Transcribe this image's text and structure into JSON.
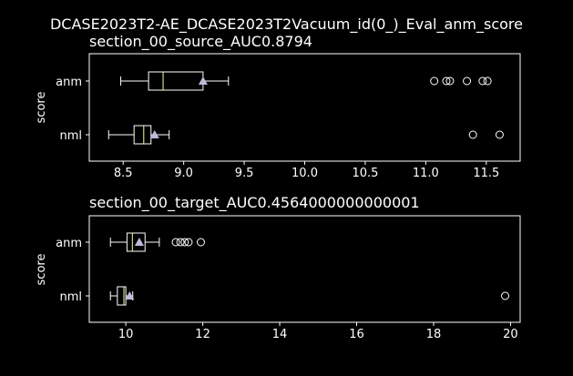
{
  "figure_title": "DCASE2023T2-AE_DCASE2023T2Vacuum_id(0_)_Eval_anm_score",
  "colors": {
    "background": "#000000",
    "axes": "#ffffff",
    "median": "#ffff99",
    "mean_marker": "#bebada"
  },
  "chart_data": [
    {
      "type": "box",
      "title": "section_00_source_AUC0.8794",
      "ylabel": "score",
      "categories": [
        "anm",
        "nml"
      ],
      "xlim": [
        8.22,
        11.78
      ],
      "xticks": [
        8.5,
        9.0,
        9.5,
        10.0,
        10.5,
        11.0,
        11.5
      ],
      "xtick_labels": [
        "8.5",
        "9.0",
        "9.5",
        "10.0",
        "10.5",
        "11.0",
        "11.5"
      ],
      "boxes": [
        {
          "label": "anm",
          "whislo": 8.48,
          "q1": 8.71,
          "med": 8.83,
          "q3": 9.16,
          "whishi": 9.37,
          "mean": 9.16,
          "fliers": [
            11.07,
            11.17,
            11.2,
            11.34,
            11.47,
            11.51
          ]
        },
        {
          "label": "nml",
          "whislo": 8.38,
          "q1": 8.59,
          "med": 8.67,
          "q3": 8.73,
          "whishi": 8.88,
          "mean": 8.76,
          "fliers": [
            11.39,
            11.61
          ]
        }
      ]
    },
    {
      "type": "box",
      "title": "section_00_target_AUC0.4564000000000001",
      "ylabel": "score",
      "categories": [
        "anm",
        "nml"
      ],
      "xlim": [
        9.05,
        20.25
      ],
      "xticks": [
        10,
        12,
        14,
        16,
        18,
        20
      ],
      "xtick_labels": [
        "10",
        "12",
        "14",
        "16",
        "18",
        "20"
      ],
      "boxes": [
        {
          "label": "anm",
          "whislo": 9.6,
          "q1": 10.03,
          "med": 10.17,
          "q3": 10.5,
          "whishi": 10.87,
          "mean": 10.35,
          "fliers": [
            11.3,
            11.42,
            11.53,
            11.63,
            11.95
          ]
        },
        {
          "label": "nml",
          "whislo": 9.6,
          "q1": 9.78,
          "med": 9.95,
          "q3": 10.0,
          "whishi": 10.18,
          "mean": 10.1,
          "fliers": [
            19.86
          ]
        }
      ]
    }
  ]
}
